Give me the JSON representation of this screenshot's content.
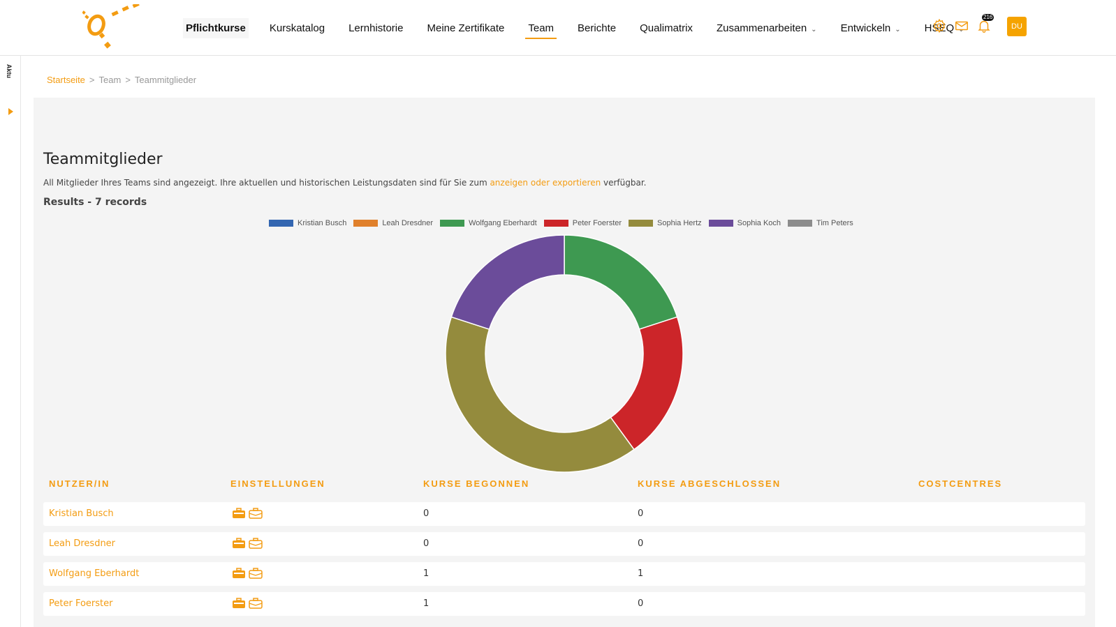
{
  "nav": {
    "items": [
      {
        "label": "Pflichtkurse"
      },
      {
        "label": "Kurskatalog"
      },
      {
        "label": "Lernhistorie"
      },
      {
        "label": "Meine Zertifikate"
      },
      {
        "label": "Team"
      },
      {
        "label": "Berichte"
      },
      {
        "label": "Qualimatrix"
      },
      {
        "label": "Zusammenarbeiten"
      },
      {
        "label": "Entwickeln"
      },
      {
        "label": "HSEQ"
      }
    ]
  },
  "header": {
    "notification_count": "216",
    "avatar_initials": "DU"
  },
  "rail": {
    "label": "Aktu"
  },
  "breadcrumb": {
    "home": "Startseite",
    "team": "Team",
    "current": "Teammitglieder",
    "separator": ">"
  },
  "page": {
    "title": "Teammitglieder",
    "desc_before": "All Mitglieder Ihres Teams sind angezeigt. Ihre aktuellen und historischen Leistungsdaten sind für Sie zum ",
    "desc_link": "anzeigen oder exportieren",
    "desc_after": " verfügbar.",
    "results": "Results - 7 records"
  },
  "colors": {
    "accent": "#f39c12"
  },
  "chart_data": {
    "type": "pie",
    "donut": true,
    "labels": [
      "Kristian Busch",
      "Leah Dresdner",
      "Wolfgang Eberhardt",
      "Peter Foerster",
      "Sophia Hertz",
      "Sophia Koch",
      "Tim Peters"
    ],
    "values": [
      0,
      0,
      1,
      1,
      2,
      1,
      0
    ],
    "colors": [
      "#3366b1",
      "#e0802b",
      "#3e9951",
      "#cc2529",
      "#948b3d",
      "#6b4c9a",
      "#8c8c8c"
    ],
    "legend_position": "top"
  },
  "table": {
    "headers": [
      "NUTZER/IN",
      "EINSTELLUNGEN",
      "KURSE BEGONNEN",
      "KURSE ABGESCHLOSSEN",
      "COSTCENTRES"
    ],
    "rows": [
      {
        "name": "Kristian Busch",
        "begonnen": "0",
        "abgeschlossen": "0",
        "costcentres": ""
      },
      {
        "name": "Leah Dresdner",
        "begonnen": "0",
        "abgeschlossen": "0",
        "costcentres": ""
      },
      {
        "name": "Wolfgang Eberhardt",
        "begonnen": "1",
        "abgeschlossen": "1",
        "costcentres": ""
      },
      {
        "name": "Peter Foerster",
        "begonnen": "1",
        "abgeschlossen": "0",
        "costcentres": ""
      }
    ]
  }
}
